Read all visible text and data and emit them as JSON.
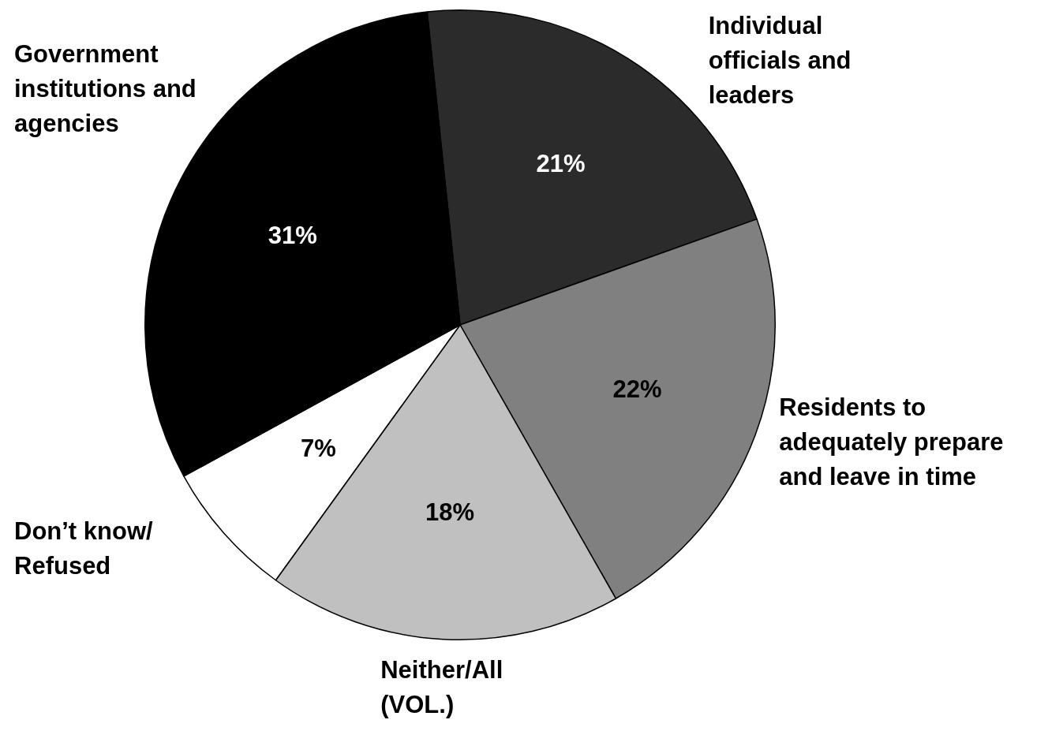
{
  "chart_data": {
    "type": "pie",
    "categories": [
      "Individual officials and leaders",
      "Residents to adequately prepare and leave in time",
      "Neither/All (VOL.)",
      "Don’t know/ Refused",
      "Government institutions and agencies"
    ],
    "values": [
      21,
      22,
      18,
      7,
      31
    ],
    "colors": [
      "#2b2b2b",
      "#808080",
      "#c0c0c0",
      "#ffffff",
      "#000000"
    ],
    "value_labels": [
      "21%",
      "22%",
      "18%",
      "7%",
      "31%"
    ],
    "legend": false
  }
}
